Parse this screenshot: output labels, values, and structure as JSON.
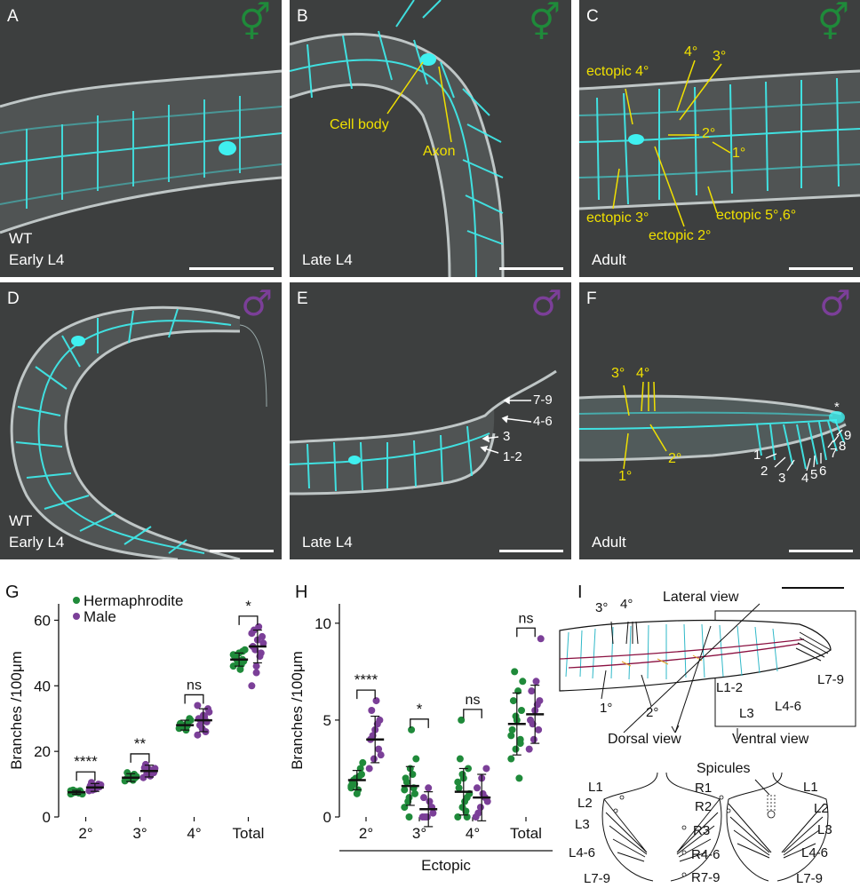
{
  "panels": {
    "A": {
      "label": "A",
      "lines": [
        "WT",
        "Early L4"
      ],
      "sex": "hermaphrodite"
    },
    "B": {
      "label": "B",
      "lines": [
        "Late L4"
      ],
      "sex": "hermaphrodite",
      "annotations": [
        "Cell body",
        "Axon"
      ]
    },
    "C": {
      "label": "C",
      "lines": [
        "Adult"
      ],
      "sex": "hermaphrodite",
      "annotations": [
        "ectopic 4°",
        "4°",
        "3°",
        "2°",
        "1°",
        "ectopic 3°",
        "ectopic 2°",
        "ectopic 5°,6°"
      ]
    },
    "D": {
      "label": "D",
      "lines": [
        "WT",
        "Early L4"
      ],
      "sex": "male"
    },
    "E": {
      "label": "E",
      "lines": [
        "Late L4"
      ],
      "sex": "male",
      "annotations": [
        "7-9",
        "4-6",
        "3",
        "1-2"
      ]
    },
    "F": {
      "label": "F",
      "lines": [
        "Adult"
      ],
      "sex": "male",
      "annotations": [
        "3°",
        "4°",
        "1°",
        "2°",
        "*",
        "1",
        "2",
        "3",
        "4",
        "5",
        "6",
        "7",
        "8",
        "9"
      ]
    }
  },
  "symbols": {
    "hermaphrodite": "⚥",
    "male": "♂"
  },
  "colors": {
    "hermaphrodite": "#1f8a3a",
    "male": "#7b3f98",
    "neuron": "#3ff0f0",
    "annotation": "#f0e000",
    "background": "#3d3f3f"
  },
  "chart_labels": {
    "G": "G",
    "H": "H",
    "I": "I"
  },
  "chart_data": [
    {
      "type": "scatter",
      "panel": "G",
      "ylabel": "Branches /100μm",
      "categories": [
        "2°",
        "3°",
        "4°",
        "Total"
      ],
      "ylim": [
        0,
        65
      ],
      "yticks": [
        0,
        20,
        40,
        60
      ],
      "series": [
        {
          "name": "Hermaphrodite",
          "means": [
            7.5,
            12,
            28,
            48
          ],
          "sd": [
            0.6,
            1.2,
            1.5,
            2
          ],
          "points": [
            [
              7,
              7.5,
              8,
              7.2,
              7.8,
              7.4,
              8.2,
              7.6,
              7,
              7.9,
              7.3,
              8
            ],
            [
              11,
              12,
              13,
              11.5,
              12.5,
              12,
              13.5,
              11.8,
              12.3,
              12.7,
              11.2
            ],
            [
              27,
              28,
              29,
              28.5,
              27.5,
              30,
              28,
              26.5,
              29.5,
              28,
              27.8
            ],
            [
              46,
              47,
              48,
              49,
              50,
              47.5,
              48.5,
              45,
              51,
              48,
              46.5,
              49.5,
              47,
              50.5
            ]
          ]
        },
        {
          "name": "Male",
          "means": [
            9,
            14,
            29.5,
            52
          ],
          "sd": [
            1.2,
            1.8,
            3.5,
            5
          ],
          "points": [
            [
              8,
              9,
              10,
              9.5,
              8.5,
              9.2,
              10.5,
              8.8,
              9.8,
              8.2
            ],
            [
              12,
              13,
              14,
              15,
              14.5,
              13.5,
              16,
              12.5,
              14.8,
              13.2
            ],
            [
              25,
              27,
              29,
              30,
              31,
              33,
              28,
              30.5,
              32,
              29.5,
              26,
              34
            ],
            [
              40,
              46,
              50,
              52,
              54,
              55,
              57,
              58,
              53,
              51,
              49,
              56,
              44
            ]
          ]
        }
      ],
      "significance": [
        "****",
        "**",
        "ns",
        "*"
      ],
      "legend": "top-left"
    },
    {
      "type": "scatter",
      "panel": "H",
      "ylabel": "Branches /100μm",
      "xlabel": "Ectopic",
      "categories": [
        "2°",
        "3°",
        "4°",
        "Total"
      ],
      "ylim": [
        0,
        11
      ],
      "yticks": [
        0,
        5,
        10
      ],
      "series": [
        {
          "name": "Hermaphrodite",
          "means": [
            1.9,
            1.6,
            1.3,
            4.8
          ],
          "sd": [
            0.5,
            1.0,
            1.2,
            1.6
          ],
          "points": [
            [
              1.5,
              2,
              2.5,
              1.8,
              1.2,
              2.2,
              1.9,
              1.4,
              2.8,
              1.7,
              2.1,
              1.6
            ],
            [
              0.5,
              1,
              1.5,
              2,
              2.5,
              1.2,
              1.8,
              4.5,
              3,
              0.8,
              2.2,
              1.4,
              0
            ],
            [
              0,
              0.5,
              1,
              1.5,
              2,
              2.5,
              3,
              0.8,
              1.2,
              5,
              0.3,
              1.8,
              2.2,
              0
            ],
            [
              3,
              3.5,
              4,
              4.5,
              5,
              5.5,
              6,
              6.5,
              7,
              7.5,
              2,
              4.2,
              5.2,
              3.8
            ]
          ]
        },
        {
          "name": "Male",
          "means": [
            4,
            0.4,
            1.0,
            5.3
          ],
          "sd": [
            1.2,
            0.9,
            1.2,
            1.5
          ],
          "points": [
            [
              2.5,
              3,
              3.5,
              4,
              4.5,
              5,
              5.5,
              6,
              3.2,
              4.2,
              4.8
            ],
            [
              0,
              0,
              0.5,
              1,
              1.5,
              0.2,
              0,
              0.8
            ],
            [
              0,
              0.5,
              1,
              1.5,
              2,
              2.5,
              0.2,
              1.2,
              0.8
            ],
            [
              3.5,
              4,
              4.5,
              5,
              5.5,
              6,
              6.5,
              7,
              9.2,
              4.8,
              5.8
            ]
          ]
        }
      ],
      "significance": [
        "****",
        "*",
        "ns",
        "ns"
      ]
    }
  ],
  "schematic": {
    "lateral_title": "Lateral view",
    "orders": [
      "3°",
      "4°",
      "2°",
      "1°"
    ],
    "ray_groups": [
      "L1-2",
      "L3",
      "L4-6",
      "L7-9"
    ],
    "dorsal": "Dorsal view",
    "ventral": "Ventral view",
    "spicules": "Spicules",
    "left_rays": [
      "L1",
      "L2",
      "L3",
      "L4-6",
      "L7-9"
    ],
    "mid_rays": [
      "R1",
      "R2",
      "R3",
      "R4-6",
      "R7-9"
    ],
    "right_rays": [
      "L1",
      "L2",
      "L3",
      "L4-6",
      "L7-9"
    ]
  }
}
